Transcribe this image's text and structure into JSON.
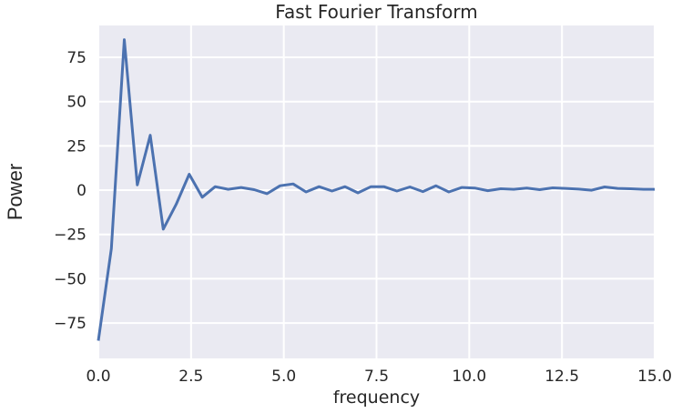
{
  "chart_data": {
    "type": "line",
    "title": "Fast Fourier Transform",
    "xlabel": "frequency",
    "ylabel": "Power",
    "xlim": [
      0,
      15
    ],
    "ylim": [
      -95,
      93
    ],
    "xticks": [
      0,
      2.5,
      5,
      7.5,
      10,
      12.5,
      15
    ],
    "xtick_labels": [
      "0.0",
      "2.5",
      "5.0",
      "7.5",
      "10.0",
      "12.5",
      "15.0"
    ],
    "yticks": [
      -75,
      -50,
      -25,
      0,
      25,
      50,
      75
    ],
    "ytick_labels": [
      "−75",
      "−50",
      "−25",
      "0",
      "25",
      "50",
      "75"
    ],
    "grid": true,
    "colors": {
      "line": "#4c72b0",
      "background": "#eaeaf2",
      "grid": "#ffffff"
    },
    "series": [
      {
        "x": [
          0.0,
          0.35,
          0.7,
          1.05,
          1.4,
          1.75,
          2.1,
          2.45,
          2.8,
          3.15,
          3.5,
          3.85,
          4.2,
          4.55,
          4.9,
          5.25,
          5.6,
          5.95,
          6.3,
          6.65,
          7.0,
          7.35,
          7.7,
          8.05,
          8.4,
          8.75,
          9.1,
          9.45,
          9.8,
          10.15,
          10.5,
          10.85,
          11.2,
          11.55,
          11.9,
          12.25,
          12.6,
          12.95,
          13.3,
          13.65,
          14.0,
          14.35,
          14.7,
          15.0
        ],
        "values": [
          -85,
          -33,
          85,
          3,
          31,
          -22,
          -8,
          9,
          -4,
          2,
          0.5,
          1.5,
          0.3,
          -2,
          2.5,
          3.5,
          -1,
          2,
          -0.5,
          2,
          -1.5,
          2,
          2,
          -0.5,
          1.8,
          -0.8,
          2.5,
          -1,
          1.5,
          1.2,
          -0.3,
          0.8,
          0.5,
          1.2,
          0.3,
          1.3,
          1,
          0.6,
          0,
          1.8,
          1,
          0.8,
          0.5,
          0.5
        ]
      }
    ]
  }
}
